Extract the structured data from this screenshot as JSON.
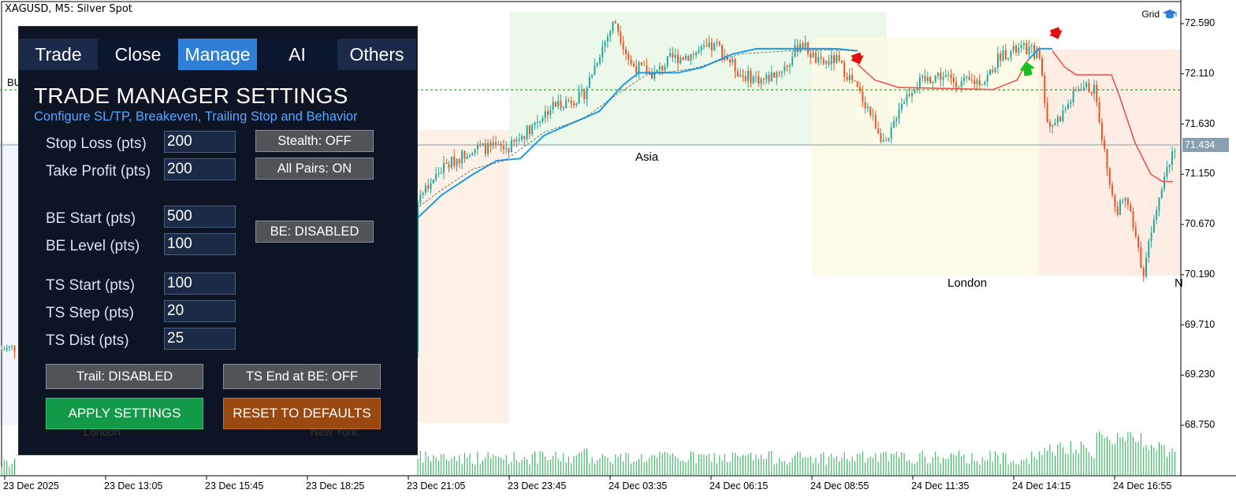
{
  "chart": {
    "title": "XAGUSD, M5:  Silver Spot",
    "grid_label": "Grid",
    "current_price": "71.434",
    "price_ticks": [
      "72.590",
      "72.110",
      "71.630",
      "71.150",
      "70.670",
      "70.190",
      "69.710",
      "69.230",
      "68.750"
    ],
    "time_ticks": [
      "23 Dec 2025",
      "23 Dec 13:05",
      "23 Dec 15:45",
      "23 Dec 18:25",
      "23 Dec 21:05",
      "23 Dec 23:45",
      "24 Dec 03:35",
      "24 Dec 06:15",
      "24 Dec 08:55",
      "24 Dec 11:35",
      "24 Dec 14:15",
      "24 Dec 16:55"
    ],
    "sessions": {
      "asia": "Asia",
      "london": "London",
      "london_hidden": "London",
      "newyork_hidden": "New York",
      "n_edge": "N",
      "bu_edge": "BU"
    },
    "colors": {
      "bull": "#26a69a",
      "bear": "#ef5322",
      "ma_blue": "#1e9be8",
      "ma_red": "#ef5350",
      "volume": "#22b24c",
      "hline": "#3aa33a"
    }
  },
  "panel": {
    "tabs": [
      {
        "label": "Trade"
      },
      {
        "label": "Close"
      },
      {
        "label": "Manage"
      },
      {
        "label": "AI"
      },
      {
        "label": "Others"
      }
    ],
    "title": "TRADE MANAGER SETTINGS",
    "subtitle": "Configure SL/TP, Breakeven, Trailing Stop and Behavior",
    "fields": {
      "sl": {
        "label": "Stop Loss (pts)",
        "value": "200"
      },
      "tp": {
        "label": "Take Profit (pts)",
        "value": "200"
      },
      "be_start": {
        "label": "BE Start (pts)",
        "value": "500"
      },
      "be_level": {
        "label": "BE Level (pts)",
        "value": "100"
      },
      "ts_start": {
        "label": "TS Start (pts)",
        "value": "100"
      },
      "ts_step": {
        "label": "TS Step (pts)",
        "value": "20"
      },
      "ts_dist": {
        "label": "TS Dist (pts)",
        "value": "25"
      }
    },
    "buttons": {
      "stealth": "Stealth: OFF",
      "all_pairs": "All Pairs: ON",
      "be": "BE: DISABLED",
      "trail": "Trail: DISABLED",
      "ts_end": "TS End at BE: OFF",
      "apply": "APPLY SETTINGS",
      "reset": "RESET TO DEFAULTS"
    }
  }
}
